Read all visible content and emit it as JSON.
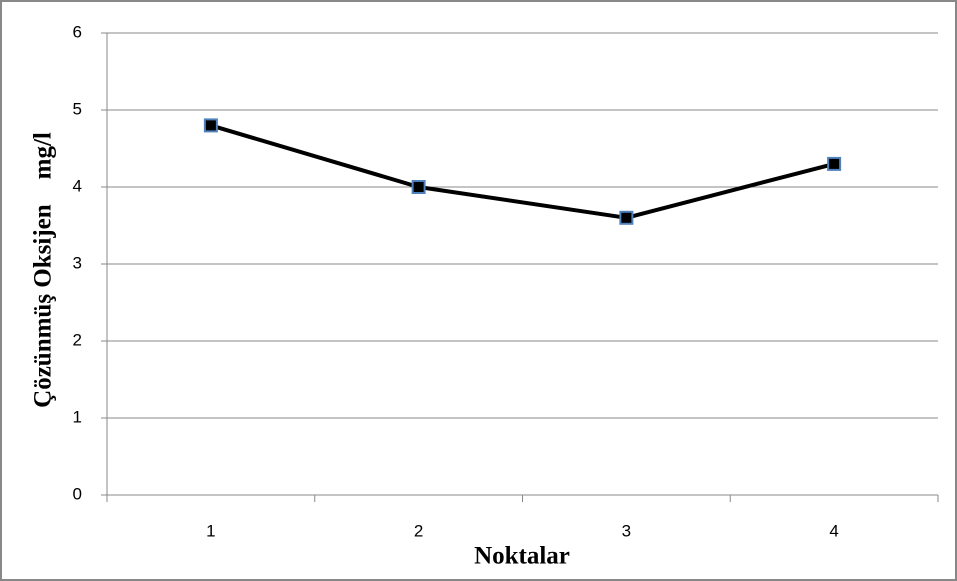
{
  "chart_data": {
    "type": "line",
    "y_label": "Çözünmüş Oksijen    mg/l",
    "x_label": "Noktalar",
    "categories": [
      "1",
      "2",
      "3",
      "4"
    ],
    "series": [
      {
        "name": "Çözünmüş Oksijen",
        "color": "#000000",
        "marker_edge": "#4f81bd",
        "values": [
          4.8,
          4.0,
          3.6,
          4.3
        ]
      }
    ],
    "ylim": [
      0,
      6
    ],
    "yticks": [
      0,
      1,
      2,
      3,
      4,
      5,
      6
    ],
    "grid": true
  }
}
